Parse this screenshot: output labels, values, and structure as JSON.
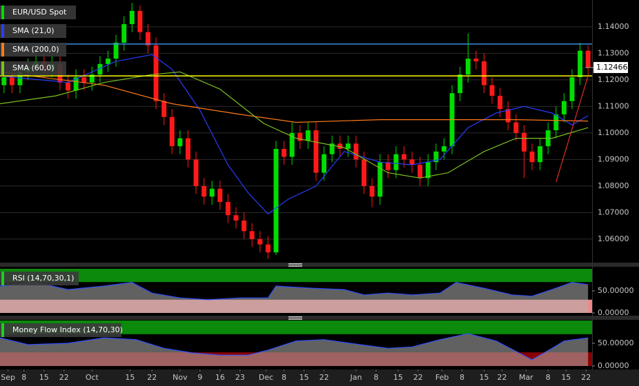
{
  "chart_data": [
    {
      "type": "candlestick",
      "name": "EUR/USD Spot",
      "up_color": "#00dd00",
      "down_color": "#ff1a1a",
      "xlim": [
        0,
        148
      ],
      "ylim": [
        1.0514,
        1.1501
      ],
      "yticks": [
        {
          "value": 1.06,
          "label": "1.06000"
        },
        {
          "value": 1.07,
          "label": "1.07000"
        },
        {
          "value": 1.08,
          "label": "1.08000"
        },
        {
          "value": 1.09,
          "label": "1.09000"
        },
        {
          "value": 1.1,
          "label": "1.10000"
        },
        {
          "value": 1.11,
          "label": "1.11000"
        },
        {
          "value": 1.12,
          "label": "1.12000"
        },
        {
          "value": 1.13,
          "label": "1.13000"
        },
        {
          "value": 1.14,
          "label": "1.14000"
        }
      ],
      "grid": true,
      "x": [
        1,
        3,
        5,
        7,
        9,
        11,
        13,
        15,
        17,
        19,
        21,
        23,
        25,
        27,
        29,
        31,
        33,
        35,
        37,
        39,
        41,
        43,
        45,
        47,
        49,
        51,
        53,
        55,
        57,
        59,
        61,
        63,
        65,
        67,
        69,
        71,
        73,
        75,
        77,
        79,
        81,
        83,
        85,
        87,
        89,
        91,
        93,
        95,
        97,
        99,
        101,
        103,
        105,
        107,
        109,
        111,
        113,
        115,
        117,
        119,
        121,
        123,
        125,
        127,
        129,
        131,
        133,
        135,
        137,
        139,
        141,
        143,
        145,
        147
      ],
      "open": [
        1.118,
        1.121,
        1.118,
        1.123,
        1.125,
        1.127,
        1.124,
        1.126,
        1.119,
        1.116,
        1.121,
        1.119,
        1.122,
        1.126,
        1.128,
        1.134,
        1.141,
        1.146,
        1.138,
        1.133,
        1.112,
        1.106,
        1.095,
        1.098,
        1.09,
        1.08,
        1.076,
        1.079,
        1.074,
        1.069,
        1.067,
        1.063,
        1.06,
        1.058,
        1.055,
        1.094,
        1.091,
        1.1,
        1.097,
        1.101,
        1.085,
        1.092,
        1.096,
        1.094,
        1.096,
        1.09,
        1.08,
        1.076,
        1.089,
        1.086,
        1.092,
        1.09,
        1.088,
        1.083,
        1.089,
        1.093,
        1.095,
        1.115,
        1.122,
        1.128,
        1.127,
        1.118,
        1.114,
        1.109,
        1.104,
        1.1,
        1.093,
        1.089,
        1.095,
        1.101,
        1.107,
        1.112,
        1.121,
        1.131
      ],
      "high": [
        1.124,
        1.124,
        1.126,
        1.128,
        1.13,
        1.13,
        1.129,
        1.129,
        1.122,
        1.124,
        1.124,
        1.125,
        1.129,
        1.131,
        1.137,
        1.144,
        1.149,
        1.148,
        1.141,
        1.136,
        1.115,
        1.109,
        1.101,
        1.101,
        1.093,
        1.083,
        1.082,
        1.082,
        1.077,
        1.072,
        1.07,
        1.066,
        1.063,
        1.061,
        1.097,
        1.097,
        1.104,
        1.103,
        1.104,
        1.104,
        1.095,
        1.099,
        1.099,
        1.099,
        1.099,
        1.093,
        1.083,
        1.092,
        1.092,
        1.095,
        1.095,
        1.093,
        1.091,
        1.092,
        1.096,
        1.098,
        1.118,
        1.125,
        1.1375,
        1.131,
        1.13,
        1.121,
        1.117,
        1.112,
        1.107,
        1.103,
        1.096,
        1.098,
        1.104,
        1.11,
        1.115,
        1.124,
        1.134,
        1.133
      ],
      "low": [
        1.115,
        1.115,
        1.115,
        1.12,
        1.122,
        1.121,
        1.121,
        1.116,
        1.113,
        1.113,
        1.116,
        1.116,
        1.119,
        1.123,
        1.125,
        1.131,
        1.138,
        1.135,
        1.13,
        1.109,
        1.103,
        1.092,
        1.092,
        1.087,
        1.077,
        1.073,
        1.073,
        1.071,
        1.066,
        1.064,
        1.06,
        1.057,
        1.055,
        1.0525,
        1.054,
        1.088,
        1.088,
        1.094,
        1.094,
        1.082,
        1.082,
        1.089,
        1.091,
        1.091,
        1.087,
        1.077,
        1.072,
        1.073,
        1.083,
        1.083,
        1.087,
        1.085,
        1.08,
        1.08,
        1.086,
        1.09,
        1.092,
        1.112,
        1.119,
        1.124,
        1.115,
        1.111,
        1.106,
        1.101,
        1.097,
        1.083,
        1.086,
        1.086,
        1.092,
        1.098,
        1.104,
        1.109,
        1.118,
        1.1215
      ],
      "close": [
        1.121,
        1.118,
        1.123,
        1.125,
        1.127,
        1.124,
        1.126,
        1.119,
        1.116,
        1.121,
        1.119,
        1.122,
        1.126,
        1.128,
        1.134,
        1.141,
        1.146,
        1.138,
        1.133,
        1.112,
        1.106,
        1.095,
        1.098,
        1.09,
        1.08,
        1.076,
        1.079,
        1.074,
        1.069,
        1.067,
        1.063,
        1.06,
        1.058,
        1.055,
        1.094,
        1.091,
        1.1,
        1.097,
        1.101,
        1.085,
        1.092,
        1.096,
        1.094,
        1.096,
        1.09,
        1.08,
        1.076,
        1.089,
        1.086,
        1.092,
        1.09,
        1.088,
        1.083,
        1.089,
        1.093,
        1.095,
        1.115,
        1.122,
        1.128,
        1.127,
        1.118,
        1.114,
        1.109,
        1.104,
        1.1,
        1.093,
        1.089,
        1.095,
        1.101,
        1.107,
        1.112,
        1.121,
        1.131,
        1.12466
      ],
      "lines": [
        {
          "name": "SMA (21,0)",
          "color": "#2a3cff",
          "x": [
            0,
            17,
            29,
            38,
            43,
            50,
            57,
            62,
            67,
            72,
            79,
            86,
            95,
            103,
            110,
            117,
            124,
            131,
            138,
            143,
            147
          ],
          "values": [
            1.1215,
            1.119,
            1.127,
            1.1295,
            1.124,
            1.1085,
            1.088,
            1.0775,
            1.0695,
            1.075,
            1.08,
            1.093,
            1.089,
            1.088,
            1.09,
            1.102,
            1.1075,
            1.11,
            1.1075,
            1.103,
            1.1065
          ]
        },
        {
          "name": "SMA (200,0)",
          "color": "#ff7a1a",
          "x": [
            0,
            26,
            43,
            60,
            74,
            95,
            112,
            129,
            147
          ],
          "values": [
            1.123,
            1.118,
            1.111,
            1.107,
            1.104,
            1.105,
            1.105,
            1.105,
            1.1045
          ]
        },
        {
          "name": "SMA (60,0)",
          "color": "#7dc21e",
          "x": [
            0,
            14,
            26,
            38,
            45,
            55,
            66,
            74,
            86,
            97,
            105,
            112,
            121,
            129,
            138,
            147
          ],
          "values": [
            1.111,
            1.114,
            1.119,
            1.122,
            1.123,
            1.1165,
            1.1035,
            1.098,
            1.0945,
            1.085,
            1.083,
            1.085,
            1.093,
            1.098,
            1.098,
            1.102
          ]
        }
      ],
      "hlines": [
        {
          "value": 1.1335,
          "color": "#3a8ee6"
        },
        {
          "value": 1.1215,
          "color": "#ffff00"
        }
      ],
      "trendlines": [
        {
          "color": "#e03020",
          "x": [
            139,
            147
          ],
          "values": [
            1.0815,
            1.1215
          ]
        }
      ],
      "last_price": 1.12466
    },
    {
      "type": "line",
      "name": "RSI (14,70,30,1)",
      "color": "#3050ff",
      "xlim": [
        0,
        148
      ],
      "ylim": [
        0,
        100
      ],
      "yticks": [
        {
          "value": 50,
          "label": "50.00000"
        },
        {
          "value": 0,
          "label": "0.00000"
        }
      ],
      "bands": [
        {
          "from": 70,
          "to": 100,
          "color": "#0b8a0b"
        },
        {
          "from": 0,
          "to": 30,
          "color": "#ee8888"
        }
      ],
      "x": [
        0,
        9,
        17,
        26,
        33,
        38,
        45,
        52,
        60,
        67,
        69,
        78,
        86,
        91,
        97,
        103,
        110,
        114,
        121,
        128,
        133,
        138,
        143,
        147
      ],
      "values": [
        61,
        69,
        53,
        61,
        69,
        45,
        34,
        30,
        34,
        34,
        61,
        56,
        53,
        41,
        45,
        41,
        45,
        69,
        56,
        41,
        38,
        53,
        69,
        64
      ]
    },
    {
      "type": "line",
      "name": "Money Flow Index (14,70,30)",
      "color": "#3050ff",
      "xlim": [
        0,
        148
      ],
      "ylim": [
        0,
        100
      ],
      "yticks": [
        {
          "value": 50,
          "label": "50.00000"
        },
        {
          "value": 0,
          "label": "0.00000"
        }
      ],
      "bands": [
        {
          "from": 70,
          "to": 100,
          "color": "#0b8a0b"
        },
        {
          "from": 0,
          "to": 30,
          "color": "#8a0000"
        }
      ],
      "x": [
        0,
        7,
        17,
        26,
        34,
        41,
        48,
        55,
        62,
        67,
        74,
        81,
        90,
        97,
        103,
        110,
        117,
        124,
        133,
        138,
        141,
        147
      ],
      "values": [
        62,
        47,
        50,
        62,
        58,
        39,
        29,
        24,
        24,
        35,
        55,
        58,
        47,
        39,
        42,
        58,
        71,
        55,
        14,
        39,
        55,
        62
      ],
      "xticks": [
        {
          "value": 2,
          "label": "Sep"
        },
        {
          "value": 6,
          "label": "8"
        },
        {
          "value": 11,
          "label": "15"
        },
        {
          "value": 16,
          "label": "22"
        },
        {
          "value": 23,
          "label": "Oct"
        },
        {
          "value": 32.5,
          "label": "15"
        },
        {
          "value": 38,
          "label": "22"
        },
        {
          "value": 45,
          "label": "Nov"
        },
        {
          "value": 50,
          "label": "9"
        },
        {
          "value": 55,
          "label": "16"
        },
        {
          "value": 60,
          "label": "23"
        },
        {
          "value": 66.5,
          "label": "Dec"
        },
        {
          "value": 71,
          "label": "8"
        },
        {
          "value": 76,
          "label": "15"
        },
        {
          "value": 81,
          "label": "22"
        },
        {
          "value": 89,
          "label": "Jan"
        },
        {
          "value": 94,
          "label": "8"
        },
        {
          "value": 99.5,
          "label": "15"
        },
        {
          "value": 104.5,
          "label": "22"
        },
        {
          "value": 110.5,
          "label": "Feb"
        },
        {
          "value": 115.5,
          "label": "8"
        },
        {
          "value": 121,
          "label": "15"
        },
        {
          "value": 125.5,
          "label": "22"
        },
        {
          "value": 131.5,
          "label": "Mar"
        },
        {
          "value": 137,
          "label": "8"
        },
        {
          "value": 141.5,
          "label": "15"
        },
        {
          "value": 146.5,
          "label": "22"
        }
      ]
    }
  ]
}
